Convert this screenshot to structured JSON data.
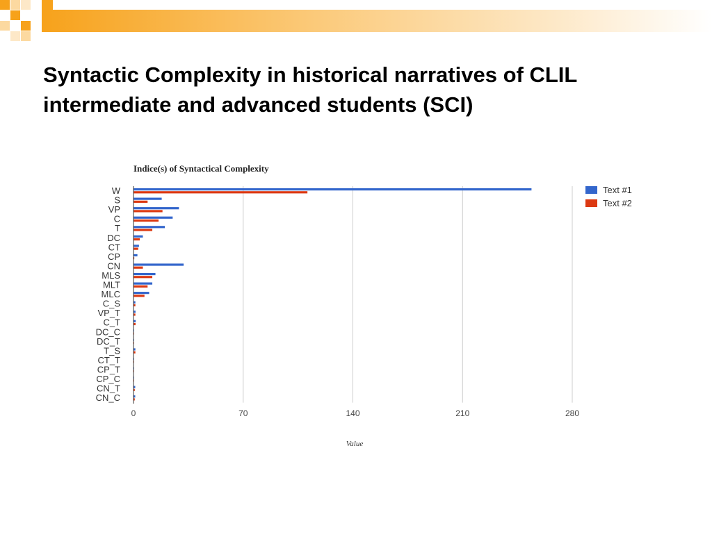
{
  "slide": {
    "title_line1": "Syntactic Complexity in historical narratives of CLIL",
    "title_line2": "intermediate  and advanced students (SCI)"
  },
  "colors": {
    "accent_orange": "#f7a21b",
    "series_1": "#3366cc",
    "series_2": "#dc3912",
    "grid": "#cccccc"
  },
  "chart_data": {
    "type": "bar",
    "orientation": "horizontal",
    "title": "Indice(s) of Syntactical Complexity",
    "xlabel": "Value",
    "ylabel": "",
    "xlim": [
      0,
      280
    ],
    "x_ticks": [
      0,
      70,
      140,
      210,
      280
    ],
    "grid": true,
    "legend_position": "right",
    "categories": [
      "W",
      "S",
      "VP",
      "C",
      "T",
      "DC",
      "CT",
      "CP",
      "CN",
      "MLS",
      "MLT",
      "MLC",
      "C_S",
      "VP_T",
      "C_T",
      "DC_C",
      "DC_T",
      "T_S",
      "CT_T",
      "CP_T",
      "CP_C",
      "CN_T",
      "CN_C"
    ],
    "series": [
      {
        "name": "Text #1",
        "color": "#3366cc",
        "values": [
          254,
          18,
          29,
          25,
          20,
          6,
          3.5,
          2.5,
          32,
          14,
          12,
          10,
          1.2,
          1.3,
          1.4,
          0.3,
          0.3,
          1.2,
          0.2,
          0.2,
          0.2,
          1.1,
          1.1
        ]
      },
      {
        "name": "Text #2",
        "color": "#dc3912",
        "values": [
          111,
          9,
          18.5,
          16,
          12,
          4,
          3,
          0.5,
          6,
          12,
          9,
          7,
          1.2,
          1.2,
          1.3,
          0.3,
          0.3,
          1.2,
          0.2,
          0.2,
          0.2,
          0.8,
          0.8
        ]
      }
    ]
  }
}
